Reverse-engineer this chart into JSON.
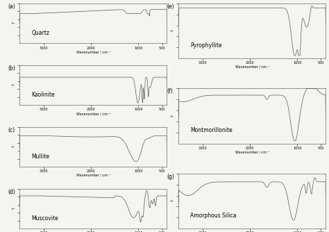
{
  "panels": [
    {
      "label": "(a)",
      "name": "Quartz",
      "col": 0,
      "row": 0
    },
    {
      "label": "(b)",
      "name": "Kaolinite",
      "col": 0,
      "row": 1
    },
    {
      "label": "(c)",
      "name": "Mullite",
      "col": 0,
      "row": 2
    },
    {
      "label": "(d)",
      "name": "Muscovite",
      "col": 0,
      "row": 3
    },
    {
      "label": "(e)",
      "name": "Pyrophyllite",
      "col": 1,
      "row": 0
    },
    {
      "label": "(f)",
      "name": "Montmorillonite",
      "col": 1,
      "row": 1
    },
    {
      "label": "(g)",
      "name": "Amorphous Silica",
      "col": 1,
      "row": 2
    }
  ],
  "x_min": 400,
  "x_max": 3500,
  "x_ticks": [
    500,
    1000,
    2000,
    3000
  ],
  "xlabel": "Wavenumber / cm⁻¹",
  "ylabel": "T",
  "line_color": "#555555",
  "bg_color": "#f5f5f0",
  "label_fontsize": 5.5,
  "name_fontsize": 5.5,
  "tick_fontsize": 3.5,
  "axis_label_fontsize": 3.5
}
